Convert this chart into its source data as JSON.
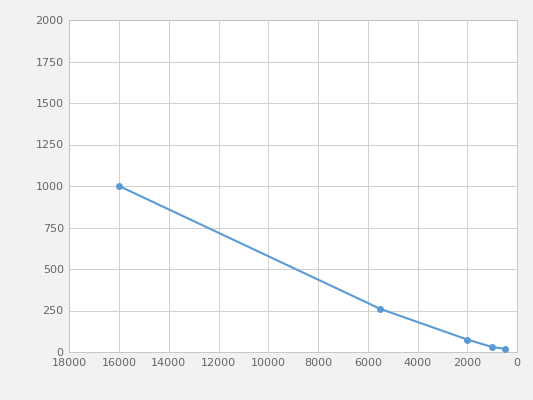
{
  "x": [
    16000,
    5500,
    2000,
    1000,
    500
  ],
  "y": [
    1000,
    260,
    75,
    30,
    20
  ],
  "line_color": "#5b9bd5",
  "marker_color": "#5b9bd5",
  "marker_size": 4,
  "line_width": 1.5,
  "xlim": [
    18000,
    0
  ],
  "ylim": [
    0,
    2000
  ],
  "xticks": [
    18000,
    16000,
    14000,
    12000,
    10000,
    8000,
    6000,
    4000,
    2000,
    0
  ],
  "yticks": [
    0,
    250,
    500,
    750,
    1000,
    1250,
    1500,
    1750,
    2000
  ],
  "grid_color": "#d0d0d0",
  "grid_linewidth": 0.7,
  "background_color": "#f2f2f2",
  "axes_background": "#ffffff",
  "tick_fontsize": 8,
  "spine_color": "#c0c0c0"
}
